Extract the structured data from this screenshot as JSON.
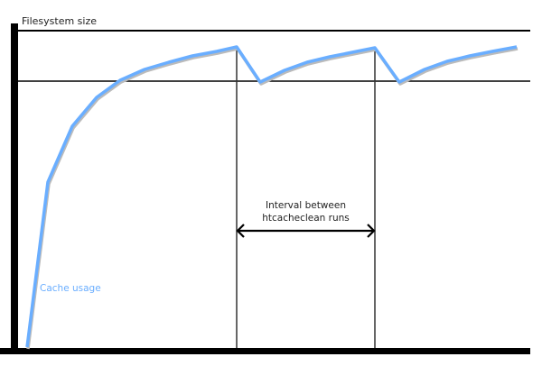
{
  "labels": {
    "y_axis": "Filesystem size",
    "interval_line1": "Interval between",
    "interval_line2": "htcacheclean runs",
    "series": "Cache usage"
  },
  "colors": {
    "series": "#6aaeff",
    "axes": "#000000"
  }
}
